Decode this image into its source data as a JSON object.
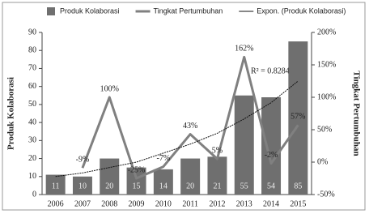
{
  "chart_data": {
    "type": "bar-line",
    "categories": [
      "2006",
      "2007",
      "2008",
      "2009",
      "2010",
      "2011",
      "2012",
      "2013",
      "2014",
      "2015"
    ],
    "series": [
      {
        "name": "Produk Kolaborasi",
        "type": "bar",
        "color": "#6f6f6f",
        "values": [
          11,
          10,
          20,
          15,
          14,
          20,
          21,
          55,
          54,
          85
        ]
      },
      {
        "name": "Tingkat Pertumbuhan",
        "type": "line",
        "axis": "y2",
        "color": "#808080",
        "values": [
          null,
          -9,
          100,
          -25,
          -7,
          43,
          5,
          162,
          -2,
          57
        ],
        "value_labels": [
          null,
          "-9%",
          "100%",
          "-25%",
          "-7%",
          "43%",
          "5%",
          "162%",
          "-2%",
          "57%"
        ]
      },
      {
        "name": "Expon. (Produk Kolaborasi)",
        "type": "trend",
        "color": "#111111",
        "values": [
          10,
          12,
          15,
          18,
          23,
          28,
          34,
          42,
          51,
          63
        ]
      }
    ],
    "y_label": "Produk Kolaborasi",
    "y2_label": "Tingkat Pertumbuhan",
    "annotation": "R² = 0.8284",
    "ylim": [
      0,
      90
    ],
    "yticks": [
      0,
      10,
      20,
      30,
      40,
      50,
      60,
      70,
      80,
      90
    ],
    "y2lim": [
      -50,
      200
    ],
    "y2ticks": [
      {
        "value": -50,
        "label": "-50%"
      },
      {
        "value": 0,
        "label": "0%"
      },
      {
        "value": 50,
        "label": "50%"
      },
      {
        "value": 100,
        "label": "100%"
      },
      {
        "value": 150,
        "label": "150%"
      },
      {
        "value": 200,
        "label": "200%"
      }
    ],
    "legend": "top"
  }
}
